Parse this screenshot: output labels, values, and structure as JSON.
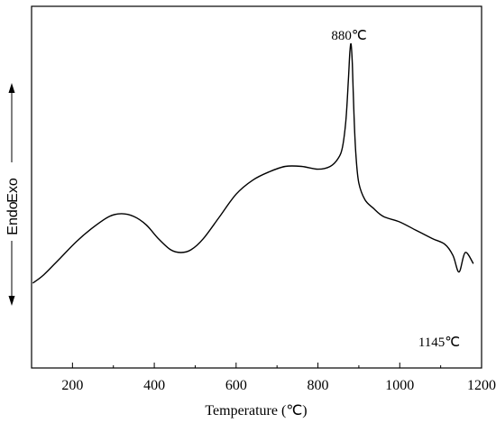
{
  "chart_data": {
    "type": "line",
    "xlabel": "Temperature (℃)",
    "ylabel_endo": "Endo",
    "ylabel_exo": "Exo",
    "xlim": [
      100,
      1200
    ],
    "ylim": [
      0,
      100
    ],
    "xticks": [
      200,
      400,
      600,
      800,
      1000,
      1200
    ],
    "xtick_labels": [
      "200",
      "400",
      "600",
      "800",
      "1000",
      "1200"
    ],
    "y_ticks_shown": false,
    "grid": false,
    "legend": "none",
    "line_color": "#000000",
    "annotations": [
      {
        "text": "880℃",
        "x": 880,
        "y": 100
      },
      {
        "text": "1145℃",
        "x": 1145,
        "y": 3
      }
    ],
    "series": [
      {
        "x": [
          103,
          130,
          170,
          210,
          250,
          290,
          320,
          350,
          380,
          410,
          440,
          465,
          490,
          520,
          560,
          600,
          640,
          680,
          720,
          760,
          800,
          830,
          850,
          860,
          868,
          874,
          878,
          881,
          884,
          888,
          893,
          900,
          915,
          935,
          960,
          1000,
          1040,
          1080,
          1110,
          1130,
          1145,
          1160,
          1180
        ],
        "y": [
          14,
          17,
          23,
          29,
          34,
          38,
          39,
          38,
          35,
          30,
          26,
          25,
          26,
          30,
          38,
          46,
          51,
          54,
          56,
          56,
          55,
          56,
          59,
          63,
          72,
          86,
          97,
          100,
          93,
          75,
          60,
          50,
          44,
          41,
          38,
          36,
          33,
          30,
          28,
          24,
          18,
          25,
          21
        ]
      }
    ]
  }
}
